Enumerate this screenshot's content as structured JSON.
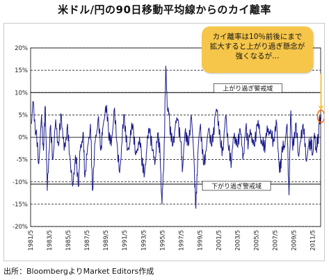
{
  "title": "米ドル/円の90日移動平均線からのカイ離率",
  "source": "出所：BloombergよりMarket Editors作成",
  "callout": {
    "line1": "カイ離率は10％前後にまで",
    "line2": "拡大すると上がり過ぎ懸念が",
    "line3": "強くなるが…"
  },
  "colors": {
    "series": "#1a1a8c",
    "callout_bg": "#f5c64a",
    "marker": "#ff6a00"
  },
  "chart_data": {
    "type": "line",
    "title": "米ドル/円の90日移動平均線からのカイ離率",
    "xlabel": "",
    "ylabel": "",
    "ylim": [
      -20,
      20
    ],
    "yticks": [
      "20%",
      "15%",
      "10%",
      "5%",
      "0%",
      "-5%",
      "-10%",
      "-15%",
      "-20%"
    ],
    "xticks": [
      "1981/5",
      "1983/5",
      "1985/5",
      "1987/5",
      "1989/5",
      "1991/5",
      "1993/5",
      "1995/5",
      "1997/5",
      "1999/5",
      "2001/5",
      "2003/5",
      "2005/5",
      "2007/5",
      "2009/5",
      "2011/5"
    ],
    "x_range": [
      "1981/5",
      "2012/3"
    ],
    "grid": "horizontal dashed",
    "reference_lines": [
      {
        "value": 10,
        "label": "上がり過ぎ警戒域"
      },
      {
        "value": -10.5,
        "label": "下がり過ぎ警戒域"
      }
    ],
    "series": [
      {
        "values": [
          [
            1981.4,
            3
          ],
          [
            1981.6,
            8
          ],
          [
            1981.9,
            1
          ],
          [
            1982.2,
            -6
          ],
          [
            1982.5,
            5
          ],
          [
            1982.7,
            -3
          ],
          [
            1982.9,
            7
          ],
          [
            1983.1,
            -12
          ],
          [
            1983.4,
            2
          ],
          [
            1983.7,
            -5
          ],
          [
            1984.0,
            4
          ],
          [
            1984.3,
            -2
          ],
          [
            1984.6,
            5
          ],
          [
            1984.9,
            -3
          ],
          [
            1985.2,
            2
          ],
          [
            1985.5,
            -4
          ],
          [
            1985.8,
            -11
          ],
          [
            1986.1,
            -4
          ],
          [
            1986.4,
            -11
          ],
          [
            1986.6,
            -3
          ],
          [
            1986.9,
            1
          ],
          [
            1987.1,
            -9
          ],
          [
            1987.4,
            -2
          ],
          [
            1987.7,
            3
          ],
          [
            1987.9,
            -12
          ],
          [
            1988.2,
            -1
          ],
          [
            1988.5,
            4
          ],
          [
            1988.8,
            -3
          ],
          [
            1989.0,
            2
          ],
          [
            1989.3,
            7
          ],
          [
            1989.6,
            2
          ],
          [
            1989.9,
            -2
          ],
          [
            1990.2,
            6
          ],
          [
            1990.5,
            -1
          ],
          [
            1990.8,
            -8
          ],
          [
            1991.0,
            -2
          ],
          [
            1991.3,
            5
          ],
          [
            1991.6,
            -3
          ],
          [
            1991.9,
            -1
          ],
          [
            1992.2,
            3
          ],
          [
            1992.5,
            -4
          ],
          [
            1992.8,
            -1
          ],
          [
            1993.1,
            -3
          ],
          [
            1993.4,
            -9
          ],
          [
            1993.7,
            -2
          ],
          [
            1994.0,
            2
          ],
          [
            1994.3,
            -3
          ],
          [
            1994.6,
            -5
          ],
          [
            1994.9,
            1
          ],
          [
            1995.1,
            -4
          ],
          [
            1995.3,
            -15
          ],
          [
            1995.5,
            -6
          ],
          [
            1995.7,
            16
          ],
          [
            1995.9,
            6
          ],
          [
            1996.1,
            4
          ],
          [
            1996.4,
            -2
          ],
          [
            1996.7,
            2
          ],
          [
            1997.0,
            4
          ],
          [
            1997.3,
            -1
          ],
          [
            1997.5,
            -7
          ],
          [
            1997.8,
            2
          ],
          [
            1998.1,
            -2
          ],
          [
            1998.4,
            5
          ],
          [
            1998.7,
            -5
          ],
          [
            1998.9,
            -16
          ],
          [
            1999.1,
            -4
          ],
          [
            1999.4,
            3
          ],
          [
            1999.7,
            -6
          ],
          [
            2000.0,
            -3
          ],
          [
            2000.3,
            2
          ],
          [
            2000.6,
            -2
          ],
          [
            2000.9,
            4
          ],
          [
            2001.2,
            6
          ],
          [
            2001.5,
            -1
          ],
          [
            2001.8,
            -3
          ],
          [
            2002.1,
            5
          ],
          [
            2002.4,
            -3
          ],
          [
            2002.7,
            -5
          ],
          [
            2003.0,
            1
          ],
          [
            2003.3,
            -2
          ],
          [
            2003.6,
            2
          ],
          [
            2003.9,
            -5
          ],
          [
            2004.2,
            2
          ],
          [
            2004.5,
            -1
          ],
          [
            2004.8,
            1
          ],
          [
            2005.1,
            -2
          ],
          [
            2005.4,
            3
          ],
          [
            2005.7,
            1
          ],
          [
            2006.0,
            -2
          ],
          [
            2006.3,
            -1
          ],
          [
            2006.6,
            2
          ],
          [
            2006.9,
            1
          ],
          [
            2007.2,
            -1
          ],
          [
            2007.5,
            3
          ],
          [
            2007.8,
            -8
          ],
          [
            2008.0,
            -4
          ],
          [
            2008.3,
            -2
          ],
          [
            2008.6,
            3
          ],
          [
            2008.8,
            -13
          ],
          [
            2009.0,
            6
          ],
          [
            2009.2,
            -3
          ],
          [
            2009.5,
            3
          ],
          [
            2009.8,
            -4
          ],
          [
            2010.0,
            -1
          ],
          [
            2010.3,
            3
          ],
          [
            2010.6,
            -5
          ],
          [
            2010.9,
            -2
          ],
          [
            2011.1,
            -1
          ],
          [
            2011.3,
            -4
          ],
          [
            2011.5,
            1
          ],
          [
            2011.7,
            -3
          ],
          [
            2011.9,
            -1
          ],
          [
            2012.0,
            3
          ],
          [
            2012.2,
            5
          ]
        ]
      }
    ]
  }
}
